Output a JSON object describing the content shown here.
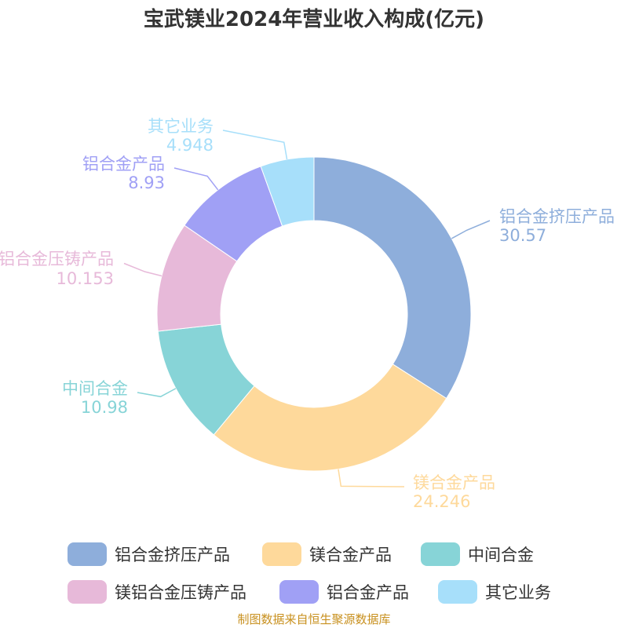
{
  "chart_data": {
    "type": "pie",
    "variant": "donut",
    "title": "宝武镁业2024年营业收入构成(亿元)",
    "categories": [
      "铝合金挤压产品",
      "镁合金产品",
      "中间合金",
      "镁铝合金压铸产品",
      "铝合金产品",
      "其它业务"
    ],
    "values": [
      30.57,
      24.246,
      10.98,
      10.153,
      8.93,
      4.948
    ],
    "value_labels": [
      "30.57",
      "24.246",
      "10.98",
      "10.153",
      "8.93",
      "4.948"
    ],
    "colors": [
      "#8eaedb",
      "#fed99b",
      "#87d4d7",
      "#e7b9d9",
      "#a0a0f5",
      "#a7dffa"
    ],
    "legend_position": "bottom"
  },
  "source_note": "制图数据来自恒生聚源数据库"
}
